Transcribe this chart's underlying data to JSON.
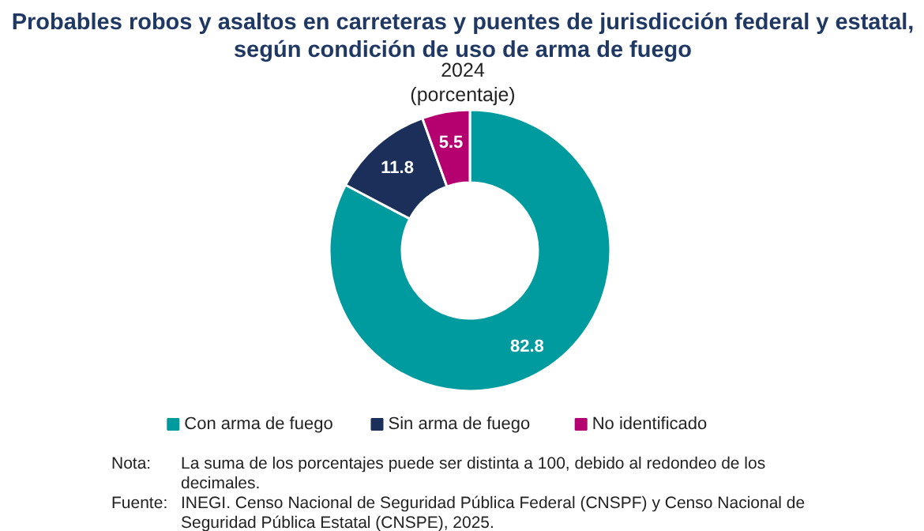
{
  "chart_data": {
    "type": "donut",
    "title": "Probables robos y asaltos en carreteras y puentes de jurisdicción federal y estatal,\nsegún condición de uso de arma de fuego",
    "subtitle": "2024\n(porcentaje)",
    "categories": [
      "Con arma de fuego",
      "Sin arma de fuego",
      "No identificado"
    ],
    "values": [
      82.8,
      11.8,
      5.5
    ],
    "colors": [
      "#009b9e",
      "#1b2f5a",
      "#b5006f"
    ],
    "data_labels": true,
    "legend": "bottom",
    "annotations": [
      "Nota: La suma de los porcentajes puede ser distinta a 100, debido al redondeo de los decimales.",
      "Fuente: INEGI. Censo Nacional de Seguridad Pública Federal (CNSPF) y Censo Nacional de Seguridad Pública Estatal (CNSPE), 2025."
    ]
  }
}
